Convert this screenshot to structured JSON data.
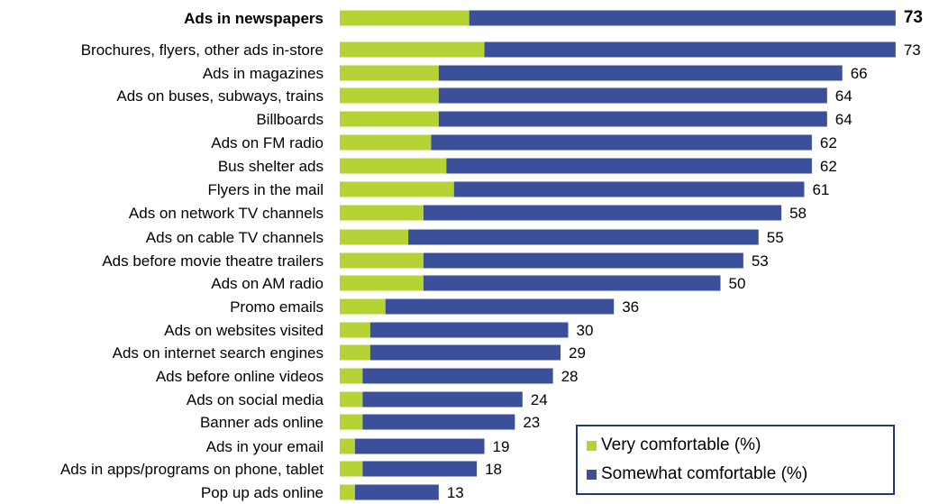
{
  "colors": {
    "very": "#b5d334",
    "somewhat": "#3c4f9a"
  },
  "legend": [
    {
      "label": "Very comfortable (%)",
      "color": "#b5d334"
    },
    {
      "label": "Somewhat comfortable (%)",
      "color": "#3c4f9a"
    }
  ],
  "chart_data": {
    "type": "bar",
    "orientation": "horizontal",
    "stacked": true,
    "categories": [
      "Ads in newspapers",
      "Brochures, flyers, other ads in-store",
      "Ads in magazines",
      "Ads on buses, subways, trains",
      "Billboards",
      "Ads on FM radio",
      "Bus shelter ads",
      "Flyers in the mail",
      "Ads on network TV channels",
      "Ads on cable TV channels",
      "Ads before movie theatre trailers",
      "Ads on AM radio",
      "Promo emails",
      "Ads on websites visited",
      "Ads on internet search engines",
      "Ads before online videos",
      "Ads on social media",
      "Banner ads online",
      "Ads in your email",
      "Ads in apps/programs on phone, tablet",
      "Pop up ads online"
    ],
    "highlight_index": 0,
    "series": [
      {
        "name": "Very comfortable (%)",
        "values": [
          17,
          19,
          13,
          13,
          13,
          12,
          14,
          15,
          11,
          9,
          11,
          11,
          6,
          4,
          4,
          3,
          3,
          3,
          2,
          3,
          2
        ]
      },
      {
        "name": "Somewhat comfortable (%)",
        "values": [
          56,
          54,
          53,
          51,
          51,
          50,
          48,
          46,
          47,
          46,
          42,
          39,
          30,
          26,
          25,
          25,
          21,
          20,
          17,
          15,
          11
        ]
      }
    ],
    "totals": [
      73,
      73,
      66,
      64,
      64,
      62,
      62,
      61,
      58,
      55,
      53,
      50,
      36,
      30,
      29,
      28,
      24,
      23,
      19,
      18,
      13
    ],
    "xlim": [
      0,
      73
    ],
    "grid": false,
    "legend_position": "bottom-right"
  }
}
